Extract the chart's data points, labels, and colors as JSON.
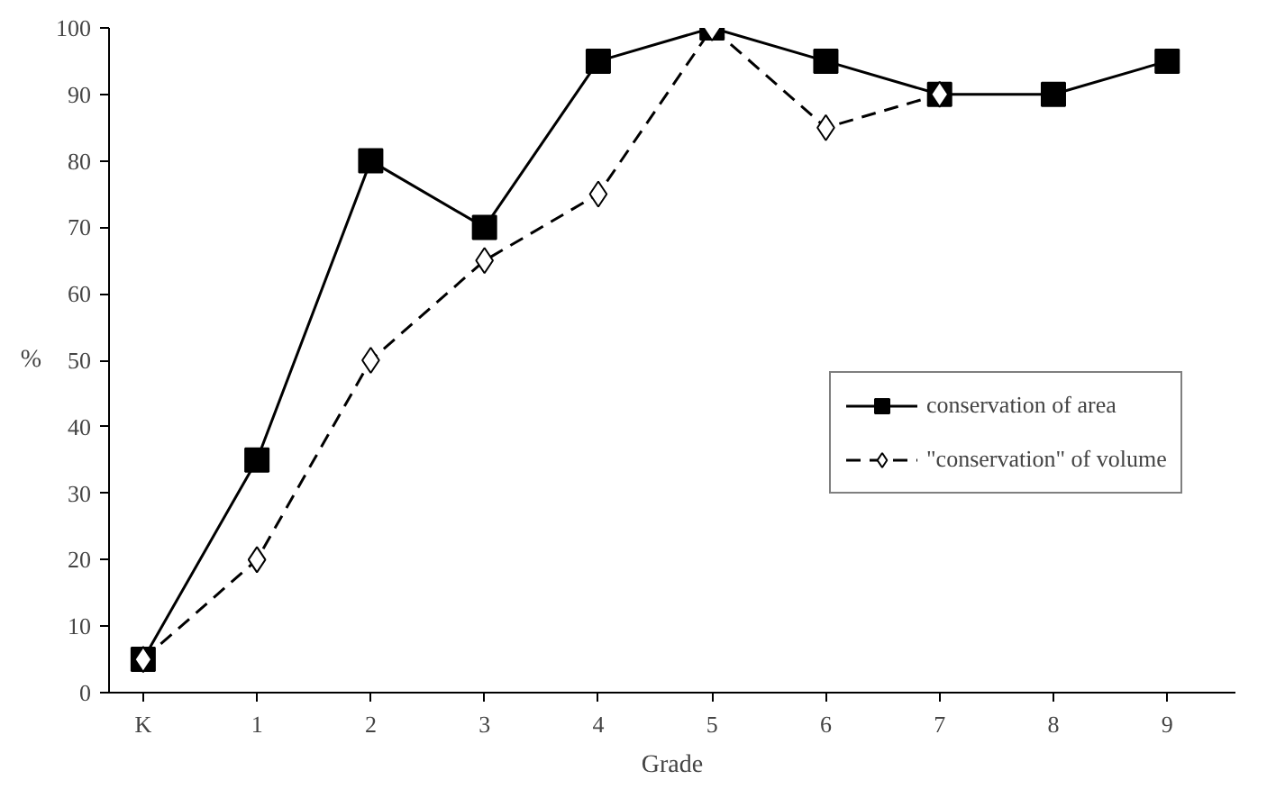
{
  "chart_data": {
    "type": "line",
    "xlabel": "Grade",
    "ylabel": "%",
    "categories": [
      "K",
      "1",
      "2",
      "3",
      "4",
      "5",
      "6",
      "7",
      "8",
      "9"
    ],
    "series": [
      {
        "name": "conservation of area",
        "color": "#000000",
        "marker": "square",
        "line_style": "solid",
        "values": [
          5,
          35,
          80,
          70,
          95,
          100,
          95,
          90,
          90,
          95
        ]
      },
      {
        "name": "\"conservation\" of volume",
        "color": "#000000",
        "marker": "diamond",
        "line_style": "dashed",
        "values": [
          5,
          20,
          50,
          65,
          75,
          100,
          85,
          90,
          null,
          null
        ]
      }
    ],
    "ylim": [
      0,
      100
    ],
    "yticks": [
      0,
      10,
      20,
      30,
      40,
      50,
      60,
      70,
      80,
      90,
      100
    ],
    "grid": false,
    "legend": "right"
  }
}
